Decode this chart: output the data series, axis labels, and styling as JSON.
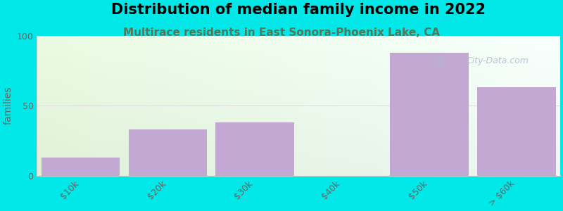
{
  "title": "Distribution of median family income in 2022",
  "subtitle": "Multirace residents in East Sonora-Phoenix Lake, CA",
  "categories": [
    "$10k",
    "$20k",
    "$30k",
    "$40k",
    "$50k",
    "> $60k"
  ],
  "values": [
    13,
    33,
    38,
    0,
    88,
    63
  ],
  "bar_color": "#c4a8d4",
  "ylabel": "families",
  "ylim": [
    0,
    100
  ],
  "yticks": [
    0,
    50,
    100
  ],
  "bg_color": "#00e8e8",
  "title_fontsize": 15,
  "subtitle_fontsize": 11,
  "subtitle_color": "#557755",
  "watermark": "City-Data.com",
  "watermark_color": "#aabbcc",
  "grid_line_color": "#dddddd",
  "spine_color": "#cccccc",
  "tick_color": "#666666",
  "ylabel_color": "#666666"
}
